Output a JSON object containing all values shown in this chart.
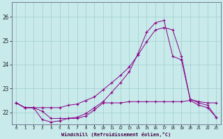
{
  "bg_color": "#c8eaea",
  "grid_color": "#a0cccc",
  "line_color": "#880088",
  "xlabel": "Windchill (Refroidissement éolien,°C)",
  "xlim": [
    -0.5,
    23.5
  ],
  "ylim": [
    21.5,
    26.6
  ],
  "yticks": [
    22,
    23,
    24,
    25,
    26
  ],
  "xticks": [
    0,
    1,
    2,
    3,
    4,
    5,
    6,
    7,
    8,
    9,
    10,
    11,
    12,
    13,
    14,
    15,
    16,
    17,
    18,
    19,
    20,
    21,
    22,
    23
  ],
  "line1_x": [
    0,
    1,
    2,
    3,
    4,
    5,
    6,
    7,
    8,
    9,
    10,
    11,
    12,
    13,
    14,
    15,
    16,
    17,
    18,
    19,
    20,
    21,
    22,
    23
  ],
  "line1_y": [
    22.4,
    22.2,
    22.2,
    22.2,
    22.2,
    22.2,
    22.3,
    22.35,
    22.5,
    22.65,
    22.95,
    23.25,
    23.55,
    23.9,
    24.4,
    24.95,
    25.45,
    25.55,
    25.45,
    24.35,
    22.55,
    22.45,
    22.4,
    22.4
  ],
  "line2_x": [
    0,
    1,
    2,
    3,
    4,
    5,
    6,
    7,
    8,
    9,
    10,
    11,
    12,
    13,
    14,
    15,
    16,
    17,
    18,
    19,
    20,
    21,
    22,
    23
  ],
  "line2_y": [
    22.4,
    22.2,
    22.2,
    21.7,
    21.6,
    21.65,
    21.75,
    21.75,
    21.85,
    22.1,
    22.4,
    22.4,
    22.4,
    22.45,
    22.45,
    22.45,
    22.45,
    22.45,
    22.45,
    22.45,
    22.5,
    22.3,
    22.2,
    21.8
  ],
  "line3_x": [
    0,
    1,
    2,
    3,
    4,
    5,
    6,
    7,
    8,
    9,
    10,
    11,
    12,
    13,
    14,
    15,
    16,
    17,
    18,
    19,
    20,
    21,
    22,
    23
  ],
  "line3_y": [
    22.4,
    22.2,
    22.2,
    22.05,
    21.75,
    21.75,
    21.75,
    21.8,
    21.95,
    22.2,
    22.45,
    22.85,
    23.25,
    23.7,
    24.45,
    25.35,
    25.75,
    25.85,
    24.35,
    24.2,
    22.55,
    22.4,
    22.3,
    21.8
  ]
}
